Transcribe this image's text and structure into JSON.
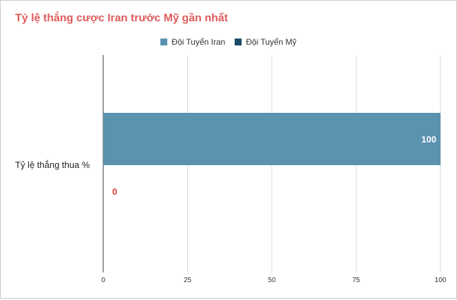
{
  "chart_data": {
    "type": "bar",
    "orientation": "horizontal",
    "title": "Tỷ lệ thắng cược Iran trước Mỹ gần nhất",
    "categories": [
      "Tỷ lệ thắng thua %"
    ],
    "series": [
      {
        "name": "Đội Tuyển Iran",
        "values": [
          100
        ],
        "color": "#5a92b0",
        "label_color": "#ffffff",
        "label_text": "100"
      },
      {
        "name": "Đội Tuyển Mỹ",
        "values": [
          0
        ],
        "color": "#1a4a66",
        "label_color": "#e03a3a",
        "label_text": "0"
      }
    ],
    "xlim": [
      0,
      100
    ],
    "xticks": [
      "0",
      "25",
      "50",
      "75",
      "100"
    ],
    "grid": true,
    "legend_position": "top"
  },
  "colors": {
    "title": "#e05c5c"
  }
}
